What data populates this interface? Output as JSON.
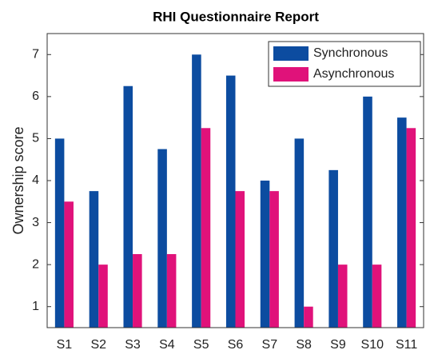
{
  "chart_data": {
    "type": "bar",
    "title": "RHI Questionnaire Report",
    "ylabel": "Ownership score",
    "categories": [
      "S1",
      "S2",
      "S3",
      "S4",
      "S5",
      "S6",
      "S7",
      "S8",
      "S9",
      "S10",
      "S11"
    ],
    "series": [
      {
        "name": "Synchronous",
        "color": "#0c4ca0",
        "values": [
          5,
          3.75,
          6.25,
          4.75,
          7,
          6.5,
          4,
          5,
          4.25,
          6,
          5.5
        ]
      },
      {
        "name": "Asynchronous",
        "color": "#e0127a",
        "values": [
          3.5,
          2,
          2.25,
          2.25,
          5.25,
          3.75,
          3.75,
          1,
          2,
          2,
          5.25
        ]
      }
    ],
    "ylim": [
      0.5,
      7.5
    ],
    "yticks": [
      1,
      2,
      3,
      4,
      5,
      6,
      7
    ],
    "grid": false,
    "legend": "upper right"
  }
}
